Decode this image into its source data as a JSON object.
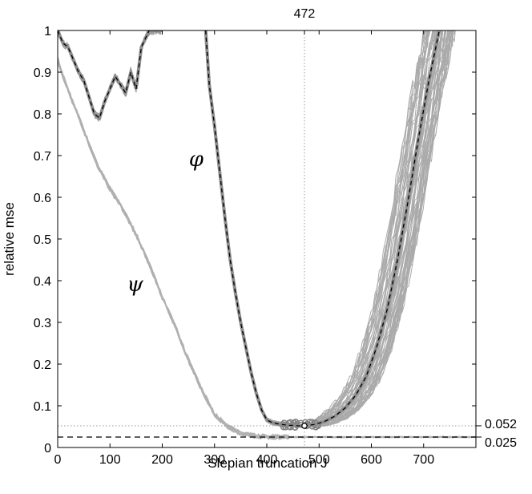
{
  "chart_data": {
    "type": "line",
    "xlabel": "Slepian truncation J",
    "ylabel": "relative mse",
    "xlim": [
      0,
      800
    ],
    "ylim": [
      0,
      1
    ],
    "x_ticks": [
      0,
      100,
      200,
      300,
      400,
      500,
      600,
      700
    ],
    "y_ticks": [
      0,
      0.1,
      0.2,
      0.3,
      0.4,
      0.5,
      0.6,
      0.7,
      0.8,
      0.9,
      1
    ],
    "y_tick_labels": [
      "0",
      "0.1",
      "0.2",
      "0.3",
      "0.4",
      "0.5",
      "0.6",
      "0.7",
      "0.8",
      "0.9",
      "1"
    ],
    "grid": false,
    "top_annotation": {
      "label": "472",
      "x": 472
    },
    "right_annotations": [
      {
        "label": "0.052",
        "y": 0.052,
        "style": "dotted"
      },
      {
        "label": "0.025",
        "y": 0.025,
        "style": "dashed"
      }
    ],
    "curve_labels": [
      {
        "text": "φ",
        "x": 265,
        "y": 0.69
      },
      {
        "text": "ψ",
        "x": 148,
        "y": 0.39
      }
    ],
    "minimum_marker": {
      "x": 472,
      "y": 0.052
    },
    "series": [
      {
        "role": "psi-mean",
        "x": [
          0,
          10,
          25,
          50,
          75,
          100,
          125,
          150,
          175,
          200,
          225,
          250,
          275,
          300,
          325,
          350,
          375,
          400,
          425,
          450,
          500,
          600,
          700,
          800
        ],
        "y": [
          0.93,
          0.89,
          0.84,
          0.76,
          0.68,
          0.62,
          0.57,
          0.51,
          0.44,
          0.36,
          0.29,
          0.21,
          0.14,
          0.08,
          0.05,
          0.035,
          0.028,
          0.026,
          0.025,
          0.025,
          0.025,
          0.025,
          0.025,
          0.025
        ]
      },
      {
        "role": "phi-mean-early",
        "x": [
          0,
          10,
          20,
          30,
          40,
          50,
          60,
          70,
          80,
          90,
          100,
          110,
          120,
          130,
          140,
          150,
          160,
          175,
          200
        ],
        "y": [
          1.0,
          0.97,
          0.96,
          0.93,
          0.9,
          0.88,
          0.84,
          0.8,
          0.79,
          0.83,
          0.86,
          0.89,
          0.87,
          0.85,
          0.9,
          0.86,
          0.96,
          1.0,
          1.0
        ]
      },
      {
        "role": "phi-mean-main",
        "x": [
          283,
          290,
          300,
          310,
          320,
          330,
          340,
          350,
          360,
          370,
          380,
          390,
          400,
          410,
          420,
          430,
          440,
          450,
          460,
          472,
          490,
          510,
          530,
          550,
          570,
          590,
          610,
          630,
          650,
          670,
          690,
          710,
          730
        ],
        "y": [
          1.0,
          0.87,
          0.77,
          0.66,
          0.55,
          0.45,
          0.37,
          0.3,
          0.24,
          0.18,
          0.13,
          0.09,
          0.066,
          0.06,
          0.057,
          0.055,
          0.053,
          0.053,
          0.052,
          0.052,
          0.055,
          0.062,
          0.075,
          0.095,
          0.125,
          0.17,
          0.24,
          0.33,
          0.45,
          0.59,
          0.74,
          0.88,
          1.0
        ]
      }
    ]
  }
}
